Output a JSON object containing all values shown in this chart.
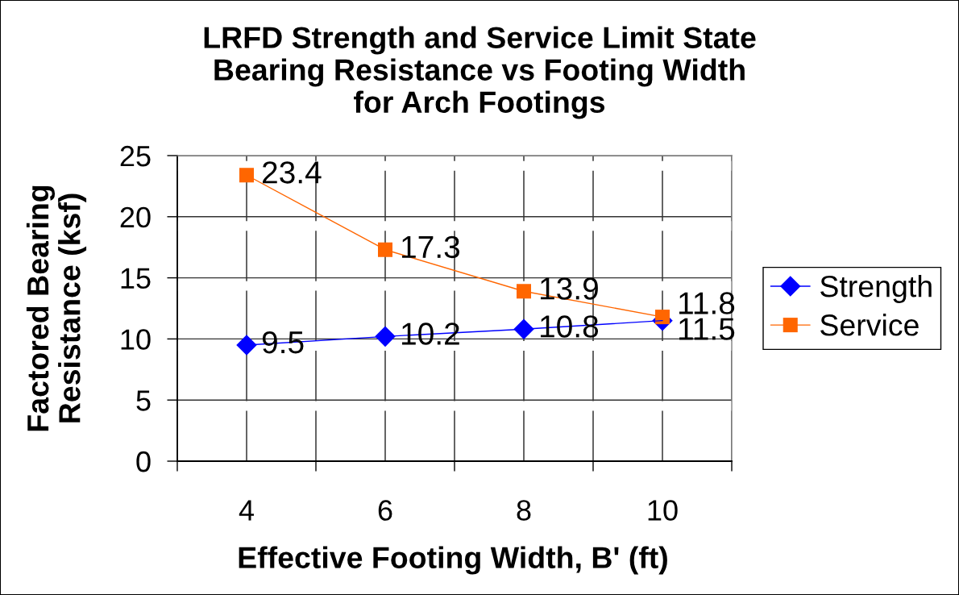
{
  "chart_data": {
    "type": "line",
    "title": "LRFD Strength and Service Limit State\nBearing Resistance vs Footing Width\nfor Arch Footings",
    "xlabel": "Effective Footing Width, B' (ft)",
    "ylabel": "Factored Bearing\nResistance (ksf)",
    "categories": [
      "4",
      "6",
      "8",
      "10"
    ],
    "series": [
      {
        "name": "Strength",
        "color": "#0000ff",
        "marker": "diamond",
        "values": [
          9.5,
          10.2,
          10.8,
          11.5
        ]
      },
      {
        "name": "Service",
        "color": "#ff6600",
        "marker": "square",
        "values": [
          23.4,
          17.3,
          13.9,
          11.8
        ]
      }
    ],
    "ylim": [
      0,
      25
    ],
    "yticks": [
      0,
      5,
      10,
      15,
      20,
      25
    ],
    "grid": true,
    "legend": "right",
    "data_labels": true,
    "line_style": "solid"
  }
}
